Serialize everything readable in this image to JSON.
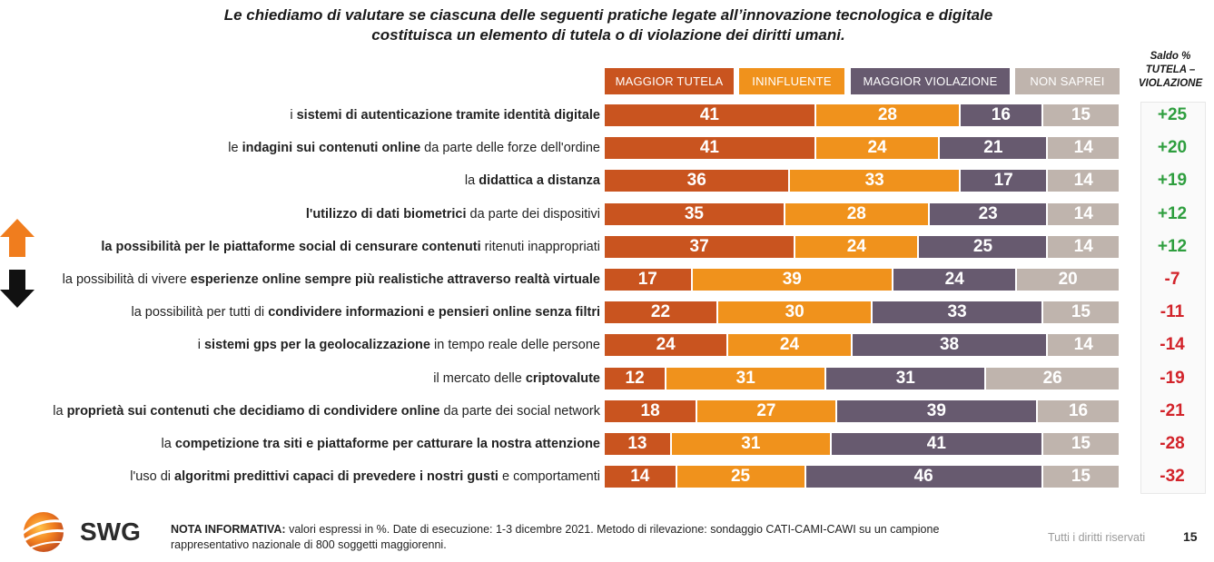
{
  "title_line1": "Le chiediamo di valutare se ciascuna delle seguenti pratiche legate all’innovazione tecnologica e digitale",
  "title_line2": "costituisca un elemento di tutela o di violazione dei diritti umani.",
  "saldo_header": [
    "Saldo %",
    "TUTELA –",
    "VIOLAZIONE"
  ],
  "legend": [
    {
      "label": "MAGGIOR TUTELA",
      "color": "#c9541f"
    },
    {
      "label": "ININFLUENTE",
      "color": "#f0921c"
    },
    {
      "label": "MAGGIOR VIOLAZIONE",
      "color": "#675a6f"
    },
    {
      "label": "NON SAPREI",
      "color": "#bfb4ad"
    }
  ],
  "colors": {
    "positive": "#2e9e3e",
    "negative": "#d2232a",
    "up_arrow": "#f07d1e",
    "down_arrow": "#111111"
  },
  "chart_data": {
    "type": "bar",
    "stacked": true,
    "orientation": "horizontal",
    "unit": "%",
    "series_names": [
      "MAGGIOR TUTELA",
      "ININFLUENTE",
      "MAGGIOR VIOLAZIONE",
      "NON SAPREI"
    ],
    "rows": [
      {
        "label_parts": [
          [
            "i ",
            false
          ],
          [
            "sistemi di autenticazione tramite identità digitale",
            true
          ]
        ],
        "values": [
          41,
          28,
          16,
          15
        ],
        "saldo": "+25"
      },
      {
        "label_parts": [
          [
            "le ",
            false
          ],
          [
            "indagini sui contenuti online",
            true
          ],
          [
            " da parte delle forze dell'ordine",
            false
          ]
        ],
        "values": [
          41,
          24,
          21,
          14
        ],
        "saldo": "+20"
      },
      {
        "label_parts": [
          [
            "la ",
            false
          ],
          [
            "didattica a distanza",
            true
          ]
        ],
        "values": [
          36,
          33,
          17,
          14
        ],
        "saldo": "+19"
      },
      {
        "label_parts": [
          [
            "l'utilizzo di dati biometrici",
            true
          ],
          [
            " da parte dei dispositivi",
            false
          ]
        ],
        "values": [
          35,
          28,
          23,
          14
        ],
        "saldo": "+12"
      },
      {
        "label_parts": [
          [
            "la possibilità per le piattaforme social di censurare contenuti",
            true
          ],
          [
            " ritenuti inappropriati",
            false
          ]
        ],
        "values": [
          37,
          24,
          25,
          14
        ],
        "saldo": "+12"
      },
      {
        "label_parts": [
          [
            "la possibilità di vivere ",
            false
          ],
          [
            "esperienze online sempre più realistiche attraverso realtà virtuale",
            true
          ]
        ],
        "values": [
          17,
          39,
          24,
          20
        ],
        "saldo": "-7"
      },
      {
        "label_parts": [
          [
            "la possibilità per tutti di ",
            false
          ],
          [
            "condividere informazioni e pensieri online senza filtri",
            true
          ]
        ],
        "values": [
          22,
          30,
          33,
          15
        ],
        "saldo": "-11"
      },
      {
        "label_parts": [
          [
            "i ",
            false
          ],
          [
            "sistemi gps per la geolocalizzazione",
            true
          ],
          [
            " in tempo reale delle persone",
            false
          ]
        ],
        "values": [
          24,
          24,
          38,
          14
        ],
        "saldo": "-14"
      },
      {
        "label_parts": [
          [
            "il mercato delle ",
            false
          ],
          [
            "criptovalute",
            true
          ]
        ],
        "values": [
          12,
          31,
          31,
          26
        ],
        "saldo": "-19"
      },
      {
        "label_parts": [
          [
            "la ",
            false
          ],
          [
            "proprietà sui contenuti che decidiamo di condividere online",
            true
          ],
          [
            " da parte dei social network",
            false
          ]
        ],
        "values": [
          18,
          27,
          39,
          16
        ],
        "saldo": "-21"
      },
      {
        "label_parts": [
          [
            "la ",
            false
          ],
          [
            "competizione tra siti e piattaforme per catturare la nostra attenzione",
            true
          ]
        ],
        "values": [
          13,
          31,
          41,
          15
        ],
        "saldo": "-28"
      },
      {
        "label_parts": [
          [
            "l'uso di ",
            false
          ],
          [
            "algoritmi predittivi capaci di prevedere i nostri gusti",
            true
          ],
          [
            " e comportamenti",
            false
          ]
        ],
        "values": [
          14,
          25,
          46,
          15
        ],
        "saldo": "-32"
      }
    ]
  },
  "footer": {
    "logo": "SWG",
    "note_bold": "NOTA INFORMATIVA:",
    "note_text": " valori espressi in %. Date di esecuzione: 1-3 dicembre 2021. Metodo di rilevazione: sondaggio CATI-CAMI-CAWI su un campione rappresentativo nazionale di 800 soggetti maggiorenni.",
    "rights": "Tutti i diritti riservati",
    "page": "15"
  }
}
